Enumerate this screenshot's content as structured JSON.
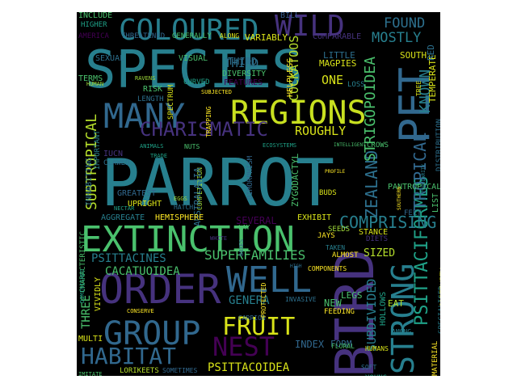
{
  "colors": {
    "background": "#000000",
    "page": "#ffffff",
    "palette": [
      "#440154",
      "#46327e",
      "#365c8d",
      "#277f8e",
      "#1fa187",
      "#4ac16d",
      "#a0da39",
      "#fde725"
    ]
  },
  "words": [
    {
      "text": "PARROT",
      "color": "#277f8e"
    },
    {
      "text": "SPECIES",
      "color": "#277f8e"
    },
    {
      "text": "BIRD",
      "color": "#46327e"
    },
    {
      "text": "ORDER",
      "color": "#46327e"
    },
    {
      "text": "EXTINCTION",
      "color": "#4ac16d"
    },
    {
      "text": "REGIONS",
      "color": "#c8e020"
    },
    {
      "text": "MANY",
      "color": "#31688e"
    },
    {
      "text": "GROUP",
      "color": "#31688e"
    },
    {
      "text": "WELL",
      "color": "#31688e"
    },
    {
      "text": "COLOURED",
      "color": "#277f8e"
    },
    {
      "text": "WILD",
      "color": "#46327e"
    },
    {
      "text": "PET",
      "color": "#31688e"
    },
    {
      "text": "STRONG",
      "color": "#277f8e"
    },
    {
      "text": "FRUIT",
      "color": "#d8e219"
    },
    {
      "text": "NEST",
      "color": "#440154"
    },
    {
      "text": "HABITAT",
      "color": "#31688e"
    },
    {
      "text": "CHARISMATIC",
      "color": "#46327e"
    },
    {
      "text": "PSITTACIFORMES",
      "color": "#1fa187"
    },
    {
      "text": "TROPICAL",
      "color": "#31688e"
    },
    {
      "text": "COMPRISING",
      "color": "#277f8e"
    },
    {
      "text": "ZEALAND",
      "color": "#2d708e"
    },
    {
      "text": "STRIGOPOIDEA",
      "color": "#4ac16d"
    },
    {
      "text": "KNOWN",
      "color": "#277f8e"
    },
    {
      "text": "MOSTLY",
      "color": "#277f8e"
    },
    {
      "text": "FOUND",
      "color": "#2d708e"
    },
    {
      "text": "COCKATOOS",
      "color": "#b5de2b"
    },
    {
      "text": "ROUGHLY",
      "color": "#d8e219"
    },
    {
      "text": "SUBTROPICAL",
      "color": "#b5de2b"
    },
    {
      "text": "SUPERFAMILIES",
      "color": "#4ac16d"
    },
    {
      "text": "PSITTACINES",
      "color": "#277f8e"
    },
    {
      "text": "CACATUOIDEA",
      "color": "#4ac16d"
    },
    {
      "text": "GENERA",
      "color": "#277f8e"
    },
    {
      "text": "PSITTACOIDEA",
      "color": "#d8e219"
    },
    {
      "text": "SUBDIVIDED",
      "color": "#277f8e"
    },
    {
      "text": "THREE",
      "color": "#4ac16d"
    },
    {
      "text": "THIRD",
      "color": "#2d708e"
    },
    {
      "text": "ONE",
      "color": "#d8e219"
    },
    {
      "text": "NEW",
      "color": "#4ac16d"
    },
    {
      "text": "LEGS",
      "color": "#4ac16d"
    },
    {
      "text": "SIZED",
      "color": "#b5de2b"
    },
    {
      "text": "INDEX",
      "color": "#31688e"
    },
    {
      "text": "INCLUDE",
      "color": "#4ac16d"
    },
    {
      "text": "BILL",
      "color": "#365c8d"
    },
    {
      "text": "THREATENED",
      "color": "#31688e"
    },
    {
      "text": "GENERALLY",
      "color": "#4ac16d"
    },
    {
      "text": "ALONG",
      "color": "#d8e219"
    },
    {
      "text": "VARIABLY",
      "color": "#d8e219"
    },
    {
      "text": "COMPARABLE",
      "color": "#46327e"
    },
    {
      "text": "AMERICA",
      "color": "#440154"
    },
    {
      "text": "HIGHER",
      "color": "#1fa187"
    },
    {
      "text": "SEXUAL",
      "color": "#2d708e"
    },
    {
      "text": "VISUAL",
      "color": "#4ac16d"
    },
    {
      "text": "THIRD",
      "color": "#2d708e"
    },
    {
      "text": "DIVERSITY",
      "color": "#4ac16d"
    },
    {
      "text": "FEATURES",
      "color": "#440154"
    },
    {
      "text": "CURVED",
      "color": "#1fa187"
    },
    {
      "text": "SUBJECTED",
      "color": "#fde725"
    },
    {
      "text": "RAVENS",
      "color": "#a0da39"
    },
    {
      "text": "RISK",
      "color": "#4ac16d"
    },
    {
      "text": "LENGTH",
      "color": "#2d708e"
    },
    {
      "text": "SPECTRUM",
      "color": "#d8e219"
    },
    {
      "text": "TRAPPING",
      "color": "#fde725"
    },
    {
      "text": "IUCN",
      "color": "#46327e"
    },
    {
      "text": "CLAWED",
      "color": "#2d708e"
    },
    {
      "text": "ANIMALS",
      "color": "#1fa187"
    },
    {
      "text": "NUTS",
      "color": "#4ac16d"
    },
    {
      "text": "TRADE",
      "color": "#1fa187"
    },
    {
      "text": "COMPETITION",
      "color": "#a0da39"
    },
    {
      "text": "AUSTRALASIA",
      "color": "#2d708e"
    },
    {
      "text": "GREATEST",
      "color": "#31688e"
    },
    {
      "text": "UPRIGHT",
      "color": "#d8e219"
    },
    {
      "text": "EGGS",
      "color": "#a0da39"
    },
    {
      "text": "HATCH",
      "color": "#2d708e"
    },
    {
      "text": "NECTAR",
      "color": "#1fa187"
    },
    {
      "text": "AGGREGATE",
      "color": "#277f8e"
    },
    {
      "text": "HEMISPHERE",
      "color": "#fde725"
    },
    {
      "text": "DIMORPHISM",
      "color": "#31688e"
    },
    {
      "text": "ZYGODACTYL",
      "color": "#4ac16d"
    },
    {
      "text": "ECOSYSTEMS",
      "color": "#1fa187"
    },
    {
      "text": "INTELLIGENT",
      "color": "#4ac16d"
    },
    {
      "text": "CROWS",
      "color": "#4ac16d"
    },
    {
      "text": "PROFILE",
      "color": "#fde725"
    },
    {
      "text": "BUDS",
      "color": "#d8e219"
    },
    {
      "text": "PANTROPICAL",
      "color": "#4ac16d"
    },
    {
      "text": "SOUTHERN",
      "color": "#fde725"
    },
    {
      "text": "POPULARITY",
      "color": "#277f8e"
    },
    {
      "text": "FEET",
      "color": "#31688e"
    },
    {
      "text": "LIST",
      "color": "#4ac16d"
    },
    {
      "text": "SEVERAL",
      "color": "#440154"
    },
    {
      "text": "EXHIBIT",
      "color": "#d8e219"
    },
    {
      "text": "SEEDS",
      "color": "#a0da39"
    },
    {
      "text": "STANCE",
      "color": "#d8e219"
    },
    {
      "text": "DIETS",
      "color": "#46327e"
    },
    {
      "text": "JAYS",
      "color": "#fde725"
    },
    {
      "text": "WHITE",
      "color": "#46327e"
    },
    {
      "text": "BOXES",
      "color": "#365c8d"
    },
    {
      "text": "TAKEN",
      "color": "#277f8e"
    },
    {
      "text": "ALMOST",
      "color": "#fde725"
    },
    {
      "text": "COMPONENTS",
      "color": "#fde725"
    },
    {
      "text": "VIVIDLY",
      "color": "#d8e219"
    },
    {
      "text": "CONSERVE",
      "color": "#fde725"
    },
    {
      "text": "CARRION",
      "color": "#31688e"
    },
    {
      "text": "INVASIVE",
      "color": "#2d708e"
    },
    {
      "text": "PROTECTED",
      "color": "#fde725"
    },
    {
      "text": "FEEDING",
      "color": "#fde725"
    },
    {
      "text": "FORM",
      "color": "#31688e"
    },
    {
      "text": "FLORAL",
      "color": "#4ac16d"
    },
    {
      "text": "HOLLOWS",
      "color": "#1fa187"
    },
    {
      "text": "AMONG",
      "color": "#277f8e"
    },
    {
      "text": "EAT",
      "color": "#b5de2b"
    },
    {
      "text": "HUMANS",
      "color": "#d8e219"
    },
    {
      "text": "SOFT",
      "color": "#2d708e"
    },
    {
      "text": "YOUNG",
      "color": "#1fa187"
    },
    {
      "text": "MULTI",
      "color": "#d8e219"
    },
    {
      "text": "IMITATE",
      "color": "#4ac16d"
    },
    {
      "text": "LORIKEETS",
      "color": "#b5de2b"
    },
    {
      "text": "SOMETIMES",
      "color": "#31688e"
    },
    {
      "text": "MATERIAL",
      "color": "#fde725"
    },
    {
      "text": "SPECIALISED",
      "color": "#277f8e"
    },
    {
      "text": "CAPTIVITY",
      "color": "#d8e219"
    },
    {
      "text": "TEMPERATE",
      "color": "#d8e219"
    },
    {
      "text": "DISTRIBUTION",
      "color": "#2d708e"
    },
    {
      "text": "RED",
      "color": "#2d708e"
    },
    {
      "text": "SOUTH",
      "color": "#d8e219"
    },
    {
      "text": "LITTLE",
      "color": "#2d708e"
    },
    {
      "text": "MAGPIES",
      "color": "#d8e219"
    },
    {
      "text": "HELPLESS",
      "color": "#fde725"
    },
    {
      "text": "TERMS",
      "color": "#4ac16d"
    },
    {
      "text": "HUMAN",
      "color": "#a0da39"
    },
    {
      "text": "INHABITING",
      "color": "#2d708e"
    },
    {
      "text": "IMPORTANT",
      "color": "#277f8e"
    },
    {
      "text": "CHARACTERISTIC",
      "color": "#4ac16d"
    },
    {
      "text": "DIMINISHED",
      "color": "#1fa187"
    },
    {
      "text": "LAY",
      "color": "#4ac16d"
    },
    {
      "text": "HIGH",
      "color": "#2d708e"
    },
    {
      "text": "TREE",
      "color": "#d8e219"
    },
    {
      "text": "LOSS",
      "color": "#277f8e"
    }
  ]
}
